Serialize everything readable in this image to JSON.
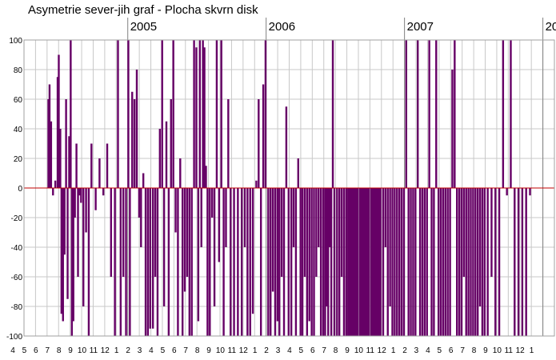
{
  "chart_data": {
    "type": "bar",
    "title": "Asymetrie sever-jih  graf -  Plocha skvrn disk",
    "xlabel": "",
    "ylabel": "",
    "ylim": [
      -100,
      100
    ],
    "yticks": [
      100,
      80,
      60,
      40,
      20,
      0,
      -20,
      -40,
      -60,
      -80,
      -100
    ],
    "xlim": [
      "2004-04",
      "2008-02"
    ],
    "grid": true,
    "legend": "none",
    "year_labels": [
      {
        "label": "2005",
        "month": "2005-01"
      },
      {
        "label": "2006",
        "month": "2006-01"
      },
      {
        "label": "2007",
        "month": "2007-01"
      },
      {
        "label": "20",
        "month": "2008-01"
      }
    ],
    "month_ticks": [
      "4",
      "5",
      "6",
      "7",
      "8",
      "9",
      "10",
      "11",
      "12",
      "1",
      "2",
      "3",
      "4",
      "5",
      "6",
      "7",
      "8",
      "9",
      "10",
      "11",
      "12",
      "1",
      "2",
      "3",
      "4",
      "5",
      "6",
      "7",
      "8",
      "9",
      "10",
      "11",
      "12",
      "1",
      "2",
      "3",
      "4",
      "5",
      "6",
      "7",
      "8",
      "9",
      "10",
      "11",
      "12",
      "1"
    ],
    "bar_color": "#660066",
    "zero_line_color": "#c00000",
    "series": [
      {
        "x": [
          "2004-06-02",
          "2004-06-05",
          "2004-06-09",
          "2004-06-14",
          "2004-06-20",
          "2004-06-26",
          "2004-06-29",
          "2004-07-03",
          "2004-07-06",
          "2004-07-10",
          "2004-07-14",
          "2004-07-18",
          "2004-07-22",
          "2004-07-26",
          "2004-07-30",
          "2004-08-03",
          "2004-08-07",
          "2004-08-11",
          "2004-08-15",
          "2004-08-19",
          "2004-08-23",
          "2004-08-27",
          "2004-09-03",
          "2004-09-10",
          "2004-09-17",
          "2004-09-24",
          "2004-10-05",
          "2004-10-15",
          "2004-10-25",
          "2004-11-05",
          "2004-11-15",
          "2004-11-25",
          "2004-12-03",
          "2004-12-10",
          "2004-12-17",
          "2004-12-24",
          "2004-12-30",
          "2005-01-04",
          "2005-01-10",
          "2005-01-16",
          "2005-01-22",
          "2005-01-28",
          "2005-02-03",
          "2005-02-09",
          "2005-02-15",
          "2005-02-21",
          "2005-02-27",
          "2005-03-04",
          "2005-03-10",
          "2005-03-16",
          "2005-03-22",
          "2005-03-28",
          "2005-04-03",
          "2005-04-09",
          "2005-04-15",
          "2005-04-21",
          "2005-04-27",
          "2005-05-03",
          "2005-05-09",
          "2005-05-15",
          "2005-05-21",
          "2005-05-27",
          "2005-06-03",
          "2005-06-09",
          "2005-06-15",
          "2005-06-21",
          "2005-06-27",
          "2005-07-02",
          "2005-07-06",
          "2005-07-10",
          "2005-07-14",
          "2005-07-18",
          "2005-07-22",
          "2005-07-26",
          "2005-08-02",
          "2005-08-08",
          "2005-08-14",
          "2005-08-20",
          "2005-08-26",
          "2005-09-02",
          "2005-09-08",
          "2005-09-14",
          "2005-09-20",
          "2005-09-26",
          "2005-10-05",
          "2005-10-15",
          "2005-10-25",
          "2005-11-03",
          "2005-11-10",
          "2005-11-17",
          "2005-11-24",
          "2005-12-03",
          "2005-12-09",
          "2005-12-15",
          "2005-12-21",
          "2005-12-27",
          "2006-01-04",
          "2006-01-10",
          "2006-01-16",
          "2006-01-22",
          "2006-01-28",
          "2006-02-03",
          "2006-02-09",
          "2006-02-15",
          "2006-02-21",
          "2006-02-27",
          "2006-03-04",
          "2006-03-10",
          "2006-03-16",
          "2006-03-22",
          "2006-03-28",
          "2006-04-03",
          "2006-04-09",
          "2006-04-15",
          "2006-04-21",
          "2006-04-27",
          "2006-05-03",
          "2006-05-09",
          "2006-05-15",
          "2006-05-21",
          "2006-05-27",
          "2006-06-02",
          "2006-06-06",
          "2006-06-10",
          "2006-06-14",
          "2006-06-18",
          "2006-06-22",
          "2006-06-26",
          "2006-07-03",
          "2006-07-09",
          "2006-07-15",
          "2006-07-21",
          "2006-07-27",
          "2006-08-02",
          "2006-08-06",
          "2006-08-10",
          "2006-08-14",
          "2006-08-18",
          "2006-08-22",
          "2006-08-26",
          "2006-09-02",
          "2006-09-06",
          "2006-09-10",
          "2006-09-14",
          "2006-09-18",
          "2006-09-22",
          "2006-09-26",
          "2006-10-02",
          "2006-10-06",
          "2006-10-10",
          "2006-10-14",
          "2006-10-18",
          "2006-10-22",
          "2006-10-26",
          "2006-11-03",
          "2006-11-09",
          "2006-11-15",
          "2006-11-21",
          "2006-11-27",
          "2006-12-03",
          "2006-12-09",
          "2006-12-15",
          "2006-12-21",
          "2006-12-27",
          "2007-01-03",
          "2007-01-09",
          "2007-01-15",
          "2007-01-21",
          "2007-01-27",
          "2007-02-03",
          "2007-02-09",
          "2007-02-15",
          "2007-02-21",
          "2007-02-27",
          "2007-03-03",
          "2007-03-09",
          "2007-03-15",
          "2007-03-21",
          "2007-03-27",
          "2007-04-03",
          "2007-04-09",
          "2007-04-15",
          "2007-04-21",
          "2007-04-27",
          "2007-05-03",
          "2007-05-09",
          "2007-05-15",
          "2007-05-21",
          "2007-05-27",
          "2007-06-03",
          "2007-06-09",
          "2007-06-15",
          "2007-06-21",
          "2007-06-27",
          "2007-07-03",
          "2007-07-09",
          "2007-07-15",
          "2007-07-21",
          "2007-07-27",
          "2007-08-05",
          "2007-08-15",
          "2007-08-25",
          "2007-09-05",
          "2007-09-15",
          "2007-09-25",
          "2007-10-05",
          "2007-10-15",
          "2007-10-25",
          "2007-11-05",
          "2007-11-15",
          "2007-11-25"
        ],
        "values": [
          60,
          70,
          45,
          -5,
          5,
          75,
          90,
          40,
          -85,
          -90,
          -45,
          60,
          -75,
          35,
          100,
          -100,
          -90,
          -20,
          30,
          -60,
          -5,
          -10,
          -80,
          -30,
          -100,
          30,
          -15,
          20,
          -5,
          30,
          -60,
          -100,
          100,
          -100,
          -60,
          -100,
          100,
          -100,
          65,
          60,
          80,
          -20,
          -40,
          10,
          -100,
          -100,
          -95,
          -95,
          -60,
          -100,
          40,
          100,
          -80,
          45,
          -100,
          60,
          100,
          -30,
          -100,
          20,
          -100,
          -70,
          -60,
          -100,
          -100,
          100,
          95,
          -90,
          100,
          -40,
          100,
          95,
          15,
          -100,
          -100,
          -20,
          -80,
          100,
          -50,
          100,
          -100,
          -40,
          60,
          -100,
          -100,
          -100,
          -100,
          -40,
          -100,
          -100,
          -85,
          5,
          60,
          -100,
          70,
          100,
          -100,
          -100,
          -70,
          -100,
          -90,
          -100,
          -60,
          -100,
          55,
          -100,
          -100,
          -40,
          -100,
          20,
          -100,
          -100,
          -60,
          -100,
          -90,
          -100,
          -100,
          -60,
          -40,
          -100,
          -100,
          -100,
          -80,
          -100,
          -40,
          -100,
          100,
          -100,
          -100,
          -100,
          -60,
          -100,
          -100,
          -100,
          -100,
          -100,
          -100,
          -100,
          -100,
          -100,
          -100,
          -100,
          -100,
          -100,
          -100,
          -100,
          -100,
          -100,
          -100,
          -100,
          -100,
          -100,
          -100,
          -100,
          -100,
          -40,
          -100,
          -80,
          -100,
          -100,
          -100,
          -100,
          -100,
          -100,
          100,
          -100,
          -100,
          -100,
          -100,
          100,
          -100,
          -100,
          -100,
          -100,
          100,
          -100,
          -100,
          100,
          -100,
          -100,
          -100,
          -100,
          -100,
          -100,
          80,
          100,
          -100,
          -100,
          -100,
          -60,
          -100,
          -100,
          -100,
          -100,
          -100,
          -100,
          -80,
          -100,
          -100,
          -100,
          -60,
          -100,
          -100,
          100,
          -5,
          100,
          -100,
          -100,
          -100,
          -100,
          -5
        ]
      }
    ]
  }
}
